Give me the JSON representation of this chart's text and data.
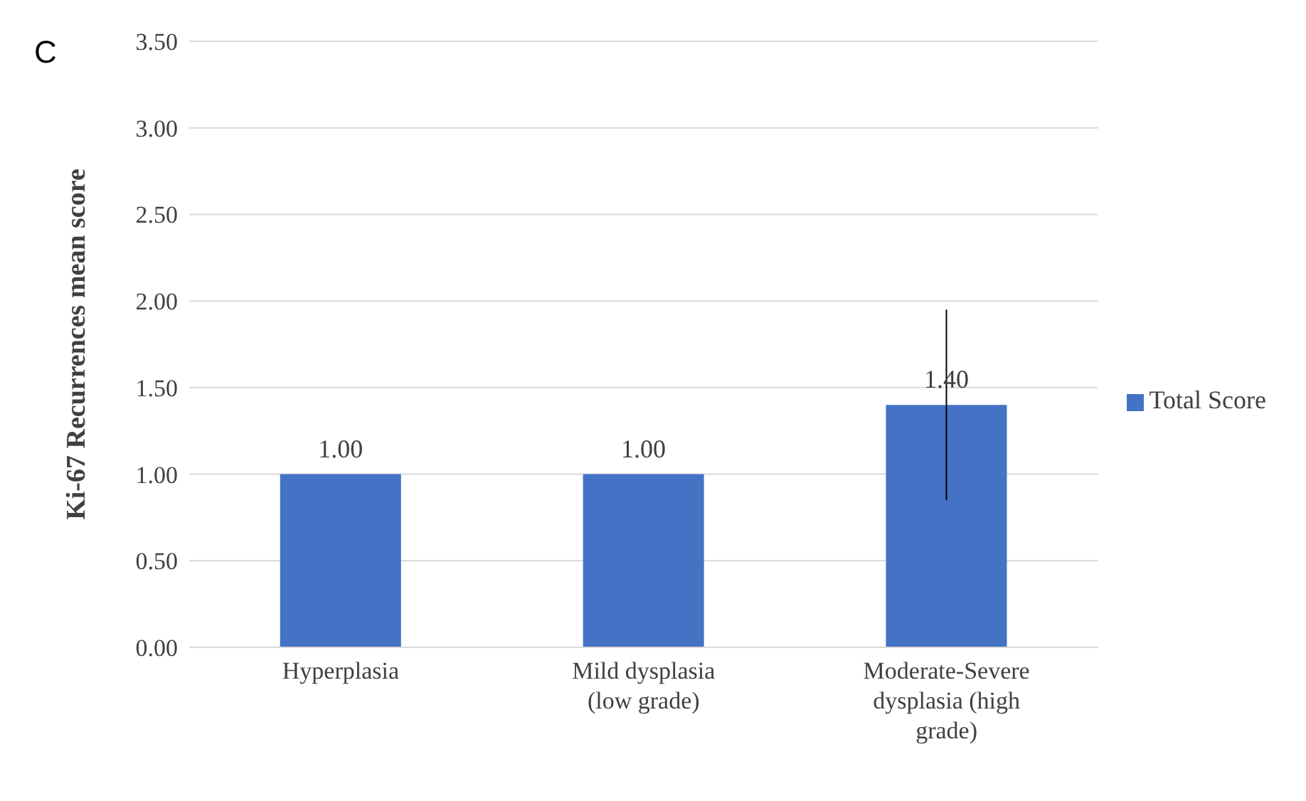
{
  "chart_data": {
    "type": "bar",
    "ylabel": "Ki-67 Recurrences mean score",
    "annotations": [
      "C"
    ],
    "categories": [
      "Hyperplasia",
      "Mild dysplasia (low grade)",
      "Moderate-Severe dysplasia (high grade)"
    ],
    "series": [
      {
        "name": "Total Score",
        "color": "#4472c4",
        "values": [
          1.0,
          1.0,
          1.4
        ],
        "errors": [
          null,
          null,
          0.55
        ],
        "value_labels": [
          "1.00",
          "1.00",
          "1.40"
        ]
      }
    ],
    "ylim": [
      0,
      3.5
    ],
    "yticks": [
      {
        "value": 0,
        "label": "0.00"
      },
      {
        "value": 0.5,
        "label": "0.50"
      },
      {
        "value": 1,
        "label": "1.00"
      },
      {
        "value": 1.5,
        "label": "1.50"
      },
      {
        "value": 2,
        "label": "2.00"
      },
      {
        "value": 2.5,
        "label": "2.50"
      },
      {
        "value": 3,
        "label": "3.00"
      },
      {
        "value": 3.5,
        "label": "3.50"
      }
    ],
    "grid": "y",
    "legend": "right"
  }
}
